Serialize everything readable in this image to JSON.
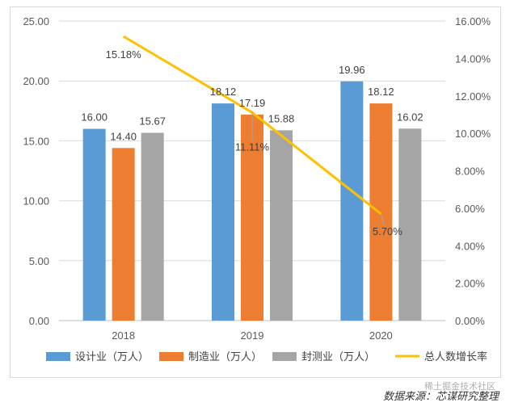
{
  "chart_data": {
    "type": "bar",
    "title": "",
    "xlabel": "",
    "ylabel": "",
    "categories": [
      "2018",
      "2019",
      "2020"
    ],
    "series": [
      {
        "name": "设计业（万人）",
        "values": [
          16.0,
          18.12,
          19.96
        ],
        "color": "#5b9bd5",
        "labels": [
          "16.00",
          "18.12",
          "19.96"
        ]
      },
      {
        "name": "制造业（万人）",
        "values": [
          14.4,
          17.19,
          18.12
        ],
        "color": "#ed7d31",
        "labels": [
          "14.40",
          "17.19",
          "18.12"
        ]
      },
      {
        "name": "封测业（万人）",
        "values": [
          15.67,
          15.88,
          16.02
        ],
        "color": "#a5a5a5",
        "labels": [
          "15.67",
          "15.88",
          "16.02"
        ]
      }
    ],
    "line_series": {
      "name": "总人数增长率",
      "values": [
        15.18,
        11.11,
        5.7
      ],
      "labels": [
        "15.18%",
        "11.11%",
        "5.70%"
      ],
      "color": "#ffc000",
      "axis": "right"
    },
    "ylim": [
      0,
      25
    ],
    "y_ticks": [
      "0.00",
      "5.00",
      "10.00",
      "15.00",
      "20.00",
      "25.00"
    ],
    "y2lim": [
      0,
      16
    ],
    "y2_ticks": [
      "0.00%",
      "2.00%",
      "4.00%",
      "6.00%",
      "8.00%",
      "10.00%",
      "12.00%",
      "14.00%",
      "16.00%"
    ],
    "grid": true,
    "legend": "bottom"
  },
  "source_note": "数据来源：芯谋研究整理",
  "watermark": "稀土掘金技术社区"
}
